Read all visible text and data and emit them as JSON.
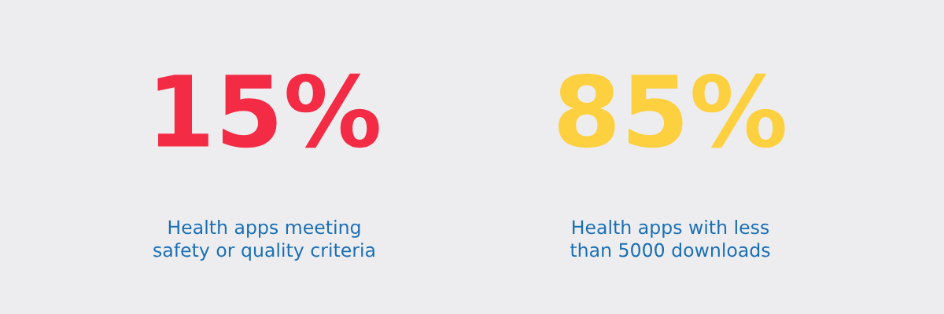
{
  "chart_data": {
    "type": "other",
    "categories": [
      "Health apps meeting safety or quality criteria",
      "Health apps with less than 5000 downloads"
    ],
    "values": [
      15,
      85
    ],
    "value_labels": [
      "15%",
      "85%"
    ],
    "colors": [
      "#f32b45",
      "#fdd03f"
    ]
  }
}
